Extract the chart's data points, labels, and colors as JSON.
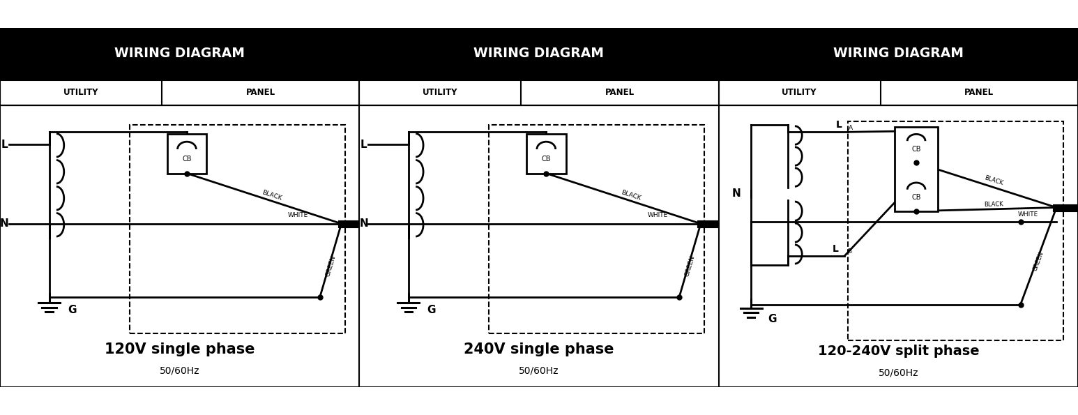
{
  "bg_color": "#ffffff",
  "header_title": "WIRING DIAGRAM",
  "subheader_utility": "UTILITY",
  "subheader_panel": "PANEL",
  "diagrams": [
    {
      "title": "120V single phase",
      "subtitle": "50/60Hz"
    },
    {
      "title": "240V single phase",
      "subtitle": "50/60Hz"
    },
    {
      "title": "120-240V split phase",
      "subtitle": "50/60Hz"
    }
  ],
  "line_lw": 2,
  "thick_lw": 8,
  "dot_ms": 5
}
